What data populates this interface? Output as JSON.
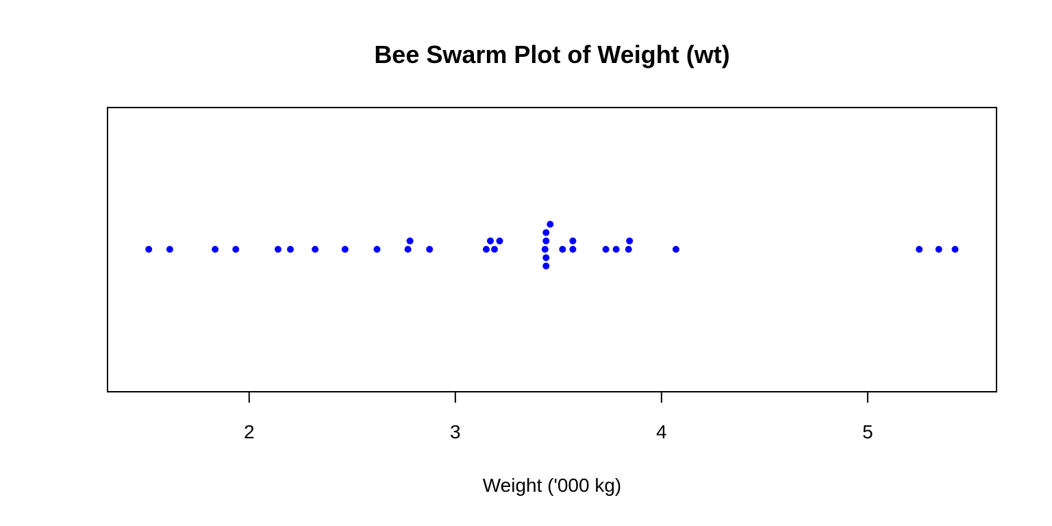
{
  "chart_data": {
    "type": "scatter",
    "subtype": "beeswarm",
    "title": "Bee Swarm Plot of Weight (wt)",
    "xlabel": "Weight ('000 kg)",
    "ylabel": "",
    "xlim": [
      1.313,
      5.625
    ],
    "xticks": [
      2,
      3,
      4,
      5
    ],
    "xtick_labels": [
      "2",
      "3",
      "4",
      "5"
    ],
    "grid": false,
    "legend": "none",
    "point_color": "#0000ff",
    "series": [
      {
        "values": [
          1.513,
          1.615,
          1.835,
          1.935,
          2.14,
          2.2,
          2.32,
          2.465,
          2.62,
          2.77,
          2.78,
          2.875,
          3.15,
          3.17,
          3.19,
          3.215,
          3.435,
          3.44,
          3.44,
          3.44,
          3.44,
          3.46,
          3.52,
          3.57,
          3.57,
          3.73,
          3.78,
          3.84,
          3.845,
          4.07,
          5.25,
          5.345,
          5.424
        ]
      }
    ]
  }
}
